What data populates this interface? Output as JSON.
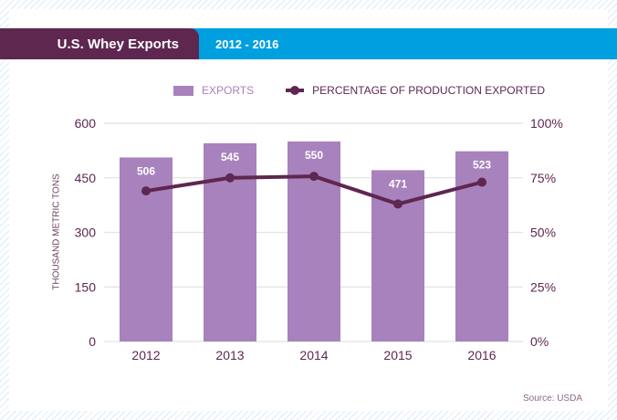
{
  "header": {
    "title": "U.S. Whey Exports",
    "range": "2012 - 2016"
  },
  "legend": {
    "bars": "EXPORTS",
    "line": "PERCENTAGE OF PRODUCTION EXPORTED"
  },
  "source": "Source: USDA",
  "colors": {
    "bar": "#a882bd",
    "line": "#5e2750",
    "header": "#5e2750",
    "accent": "#009fe0"
  },
  "chart_data": {
    "type": "bar",
    "title": "U.S. Whey Exports",
    "subtitle": "2012 - 2016",
    "categories": [
      "2012",
      "2013",
      "2014",
      "2015",
      "2016"
    ],
    "series": [
      {
        "name": "EXPORTS",
        "type": "bar",
        "axis": "left",
        "values": [
          506,
          545,
          550,
          471,
          523
        ]
      },
      {
        "name": "PERCENTAGE OF PRODUCTION EXPORTED",
        "type": "line",
        "axis": "right",
        "values": [
          69,
          75,
          75.7,
          63,
          73
        ]
      }
    ],
    "ylabel": "THOUSAND METRIC TONS",
    "ylim": [
      0,
      600
    ],
    "yticks": [
      "0",
      "150",
      "300",
      "450",
      "600"
    ],
    "y2lim": [
      0,
      100
    ],
    "y2ticks": [
      "0%",
      "25%",
      "50%",
      "75%",
      "100%"
    ],
    "grid": true,
    "legend_position": "top-center",
    "source": "Source: USDA"
  }
}
